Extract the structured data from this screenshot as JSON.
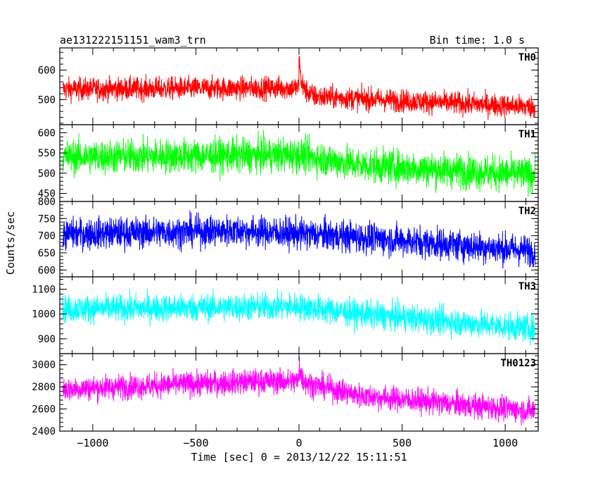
{
  "header": {
    "title": "ae131222151151_wam3_trn",
    "bin_time": "Bin time: 1.0 s"
  },
  "axes": {
    "ylabel": "Counts/sec",
    "xlabel": "Time [sec] 0 = 2013/12/22 15:11:51"
  },
  "chart_data": {
    "type": "line",
    "title": "ae131222151151_wam3_trn",
    "subtitle": "Bin time: 1.0 s",
    "xlabel": "Time [sec] 0 = 2013/12/22 15:11:51",
    "ylabel": "Counts/sec",
    "xlim": [
      -1160,
      1160
    ],
    "x_range_data": [
      -1145,
      1145
    ],
    "x_ticks": [
      -1000,
      -500,
      0,
      500,
      1000
    ],
    "x_tick_labels": [
      "−1000",
      "−500",
      "0",
      "500",
      "1000"
    ],
    "bin_seconds": 1.0,
    "burst_time": 0,
    "panels": [
      {
        "name": "TH0",
        "color": "#ff0000",
        "ylim": [
          415,
          675
        ],
        "y_ticks": [
          500,
          600
        ],
        "y_tick_labels": [
          "500",
          "600"
        ],
        "trend": [
          {
            "x": -1145,
            "y": 535
          },
          {
            "x": 0,
            "y": 540
          },
          {
            "x": 80,
            "y": 510
          },
          {
            "x": 1145,
            "y": 475
          }
        ],
        "noise_amplitude": 38,
        "spike": {
          "x": 0,
          "peak": 675
        }
      },
      {
        "name": "TH1",
        "color": "#00ff00",
        "ylim": [
          430,
          620
        ],
        "y_ticks": [
          450,
          500,
          550,
          600
        ],
        "y_tick_labels": [
          "450",
          "500",
          "550",
          "600"
        ],
        "trend": [
          {
            "x": -1145,
            "y": 540
          },
          {
            "x": 0,
            "y": 545
          },
          {
            "x": 300,
            "y": 520
          },
          {
            "x": 1145,
            "y": 495
          }
        ],
        "noise_amplitude": 42
      },
      {
        "name": "TH2",
        "color": "#0000ff",
        "ylim": [
          580,
          800
        ],
        "y_ticks": [
          600,
          650,
          700,
          750,
          800
        ],
        "y_tick_labels": [
          "600",
          "650",
          "700",
          "750",
          "800"
        ],
        "trend": [
          {
            "x": -1145,
            "y": 705
          },
          {
            "x": -300,
            "y": 715
          },
          {
            "x": 200,
            "y": 700
          },
          {
            "x": 1145,
            "y": 655
          }
        ],
        "noise_amplitude": 45
      },
      {
        "name": "TH3",
        "color": "#00ffff",
        "ylim": [
          840,
          1150
        ],
        "y_ticks": [
          900,
          1000,
          1100
        ],
        "y_tick_labels": [
          "900",
          "1000",
          "1100"
        ],
        "trend": [
          {
            "x": -1145,
            "y": 1020
          },
          {
            "x": 0,
            "y": 1030
          },
          {
            "x": 300,
            "y": 1000
          },
          {
            "x": 1145,
            "y": 940
          }
        ],
        "noise_amplitude": 55
      },
      {
        "name": "TH0123",
        "color": "#ff00ff",
        "ylim": [
          2400,
          3100
        ],
        "y_ticks": [
          2400,
          2600,
          2800,
          3000
        ],
        "y_tick_labels": [
          "2400",
          "2600",
          "2800",
          "3000"
        ],
        "trend": [
          {
            "x": -1145,
            "y": 2780
          },
          {
            "x": -200,
            "y": 2850
          },
          {
            "x": 0,
            "y": 2850
          },
          {
            "x": 300,
            "y": 2720
          },
          {
            "x": 1145,
            "y": 2580
          }
        ],
        "noise_amplitude": 110,
        "spike": {
          "x": 0,
          "peak": 3080
        }
      }
    ]
  }
}
